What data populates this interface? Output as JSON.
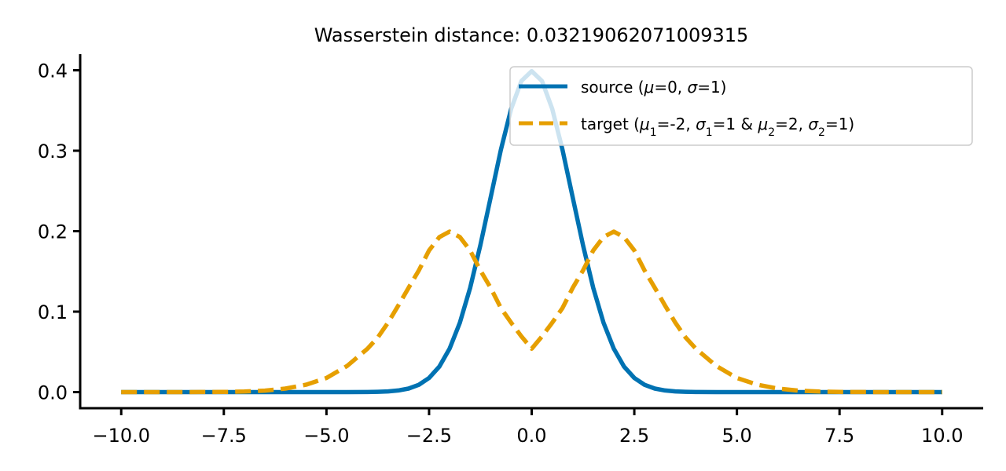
{
  "colors": {
    "source": "#0072b2",
    "target": "#e69f00",
    "axis": "#000000",
    "background": "#ffffff"
  },
  "chart_data": {
    "type": "line",
    "title": "Wasserstein distance: 0.03219062071009315",
    "xlabel": "",
    "ylabel": "",
    "xlim": [
      -11,
      11
    ],
    "ylim": [
      -0.02,
      0.42
    ],
    "grid": false,
    "legend_placement": "top-right",
    "xticks": [
      -10.0,
      -7.5,
      -5.0,
      -2.5,
      0.0,
      2.5,
      5.0,
      7.5,
      10.0
    ],
    "xtick_labels": [
      "−10.0",
      "−7.5",
      "−5.0",
      "−2.5",
      "0.0",
      "2.5",
      "5.0",
      "7.5",
      "10.0"
    ],
    "yticks": [
      0.0,
      0.1,
      0.2,
      0.3,
      0.4
    ],
    "ytick_labels": [
      "0.0",
      "0.1",
      "0.2",
      "0.3",
      "0.4"
    ],
    "x": [
      -10,
      -9.5,
      -9,
      -8.5,
      -8,
      -7.5,
      -7,
      -6.5,
      -6,
      -5.5,
      -5,
      -4.5,
      -4,
      -3.75,
      -3.5,
      -3.25,
      -3,
      -2.75,
      -2.5,
      -2.25,
      -2,
      -1.75,
      -1.5,
      -1.25,
      -1,
      -0.75,
      -0.5,
      -0.25,
      0,
      0.25,
      0.5,
      0.75,
      1,
      1.25,
      1.5,
      1.75,
      2,
      2.25,
      2.5,
      2.75,
      3,
      3.25,
      3.5,
      3.75,
      4,
      4.5,
      5,
      5.5,
      6,
      6.5,
      7,
      7.5,
      8,
      8.5,
      9,
      9.5,
      10
    ],
    "series": [
      {
        "name": "source (μ=0, σ=1)",
        "style": "solid",
        "values": [
          0,
          0,
          0,
          0,
          0,
          0,
          0,
          0,
          0,
          0,
          1.5e-06,
          1.6e-05,
          0.000134,
          0.000353,
          0.000873,
          0.002029,
          0.004432,
          0.009094,
          0.017528,
          0.03174,
          0.053991,
          0.086277,
          0.129518,
          0.182649,
          0.241971,
          0.301137,
          0.352065,
          0.386668,
          0.398942,
          0.386668,
          0.352065,
          0.301137,
          0.241971,
          0.182649,
          0.129518,
          0.086277,
          0.053991,
          0.03174,
          0.017528,
          0.009094,
          0.004432,
          0.002029,
          0.000873,
          0.000353,
          0.000134,
          1.6e-05,
          1.5e-06,
          0,
          0,
          0,
          0,
          0,
          0,
          0,
          0,
          0,
          0
        ]
      },
      {
        "name": "target (μ1=-2, σ1=1 & μ2=2, σ2=1)",
        "style": "dashed",
        "values": [
          0,
          0,
          0,
          0,
          6.74e-05,
          0.000224,
          0.000674,
          0.001842,
          0.004432,
          0.009137,
          0.017528,
          0.032364,
          0.053991,
          0.06782,
          0.086277,
          0.10761,
          0.129518,
          0.151212,
          0.176034,
          0.192624,
          0.1995,
          0.192779,
          0.176034,
          0.151212,
          0.129518,
          0.104474,
          0.086277,
          0.06928,
          0.053991,
          0.06928,
          0.086277,
          0.104474,
          0.129518,
          0.151212,
          0.176034,
          0.192779,
          0.1995,
          0.192624,
          0.176034,
          0.151212,
          0.129518,
          0.10761,
          0.086277,
          0.06782,
          0.053991,
          0.032364,
          0.017528,
          0.009137,
          0.004432,
          0.001842,
          0.000674,
          0.000224,
          6.74e-05,
          0,
          0,
          0,
          0
        ]
      }
    ]
  }
}
